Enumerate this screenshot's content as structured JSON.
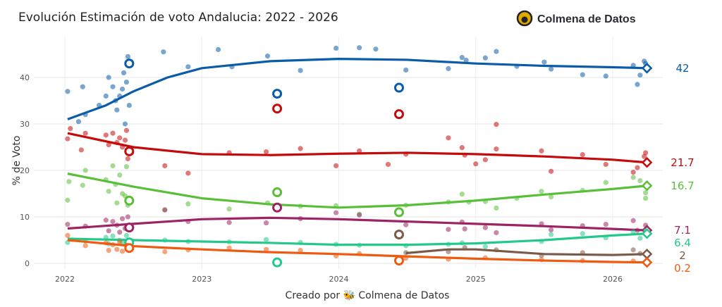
{
  "chart_data": {
    "type": "scatter",
    "title": "Evolución Estimación de voto Andalucia: 2022 - 2026",
    "brand": "Colmena de Datos",
    "xlabel": "Creado por 🐝 Colmena de Datos",
    "ylabel": "% de Voto",
    "xlim": [
      2021.75,
      2026.65
    ],
    "ylim": [
      -1.5,
      48
    ],
    "x_ticks": [
      2022,
      2023,
      2024,
      2025,
      2026
    ],
    "y_ticks": [
      0,
      10,
      20,
      30,
      40
    ],
    "grid": true,
    "series": [
      {
        "color": "#0a5ca8",
        "last_label": "42",
        "last_value": 42,
        "last_x": 2026.25,
        "trend": [
          [
            2022.02,
            31
          ],
          [
            2022.3,
            34
          ],
          [
            2022.5,
            37
          ],
          [
            2022.75,
            40
          ],
          [
            2023,
            42
          ],
          [
            2023.5,
            43.5
          ],
          [
            2024,
            44
          ],
          [
            2024.5,
            43.8
          ],
          [
            2025,
            43
          ],
          [
            2025.5,
            42.5
          ],
          [
            2026,
            42.2
          ],
          [
            2026.25,
            42
          ]
        ],
        "elections": [
          [
            2022.47,
            43
          ],
          [
            2023.55,
            36.5
          ],
          [
            2024.44,
            37.8
          ]
        ],
        "points": [
          [
            2022.02,
            37
          ],
          [
            2022.1,
            30.5
          ],
          [
            2022.13,
            38
          ],
          [
            2022.15,
            32
          ],
          [
            2022.25,
            34
          ],
          [
            2022.3,
            36
          ],
          [
            2022.32,
            40
          ],
          [
            2022.35,
            38
          ],
          [
            2022.37,
            35
          ],
          [
            2022.4,
            36
          ],
          [
            2022.42,
            37.5
          ],
          [
            2022.43,
            41
          ],
          [
            2022.45,
            39
          ],
          [
            2022.46,
            44.5
          ],
          [
            2022.44,
            30
          ],
          [
            2022.47,
            34
          ],
          [
            2022.38,
            33
          ],
          [
            2022.72,
            45.5
          ],
          [
            2022.9,
            42.3
          ],
          [
            2023.12,
            46
          ],
          [
            2023.22,
            42.3
          ],
          [
            2023.48,
            44.6
          ],
          [
            2023.72,
            41.5
          ],
          [
            2023.98,
            46.3
          ],
          [
            2024.15,
            46.4
          ],
          [
            2024.27,
            46.1
          ],
          [
            2024.49,
            41.6
          ],
          [
            2024.8,
            41.9
          ],
          [
            2024.9,
            44.3
          ],
          [
            2024.93,
            43.7
          ],
          [
            2025.07,
            44.2
          ],
          [
            2025.15,
            45.6
          ],
          [
            2025.3,
            42.4
          ],
          [
            2025.5,
            43.3
          ],
          [
            2025.55,
            41.8
          ],
          [
            2025.78,
            40.6
          ],
          [
            2025.95,
            40.3
          ],
          [
            2026.15,
            42.6
          ],
          [
            2026.18,
            38.5
          ],
          [
            2026.23,
            43.5
          ],
          [
            2026.24,
            43
          ],
          [
            2026.2,
            40.5
          ]
        ]
      },
      {
        "color": "#c40a0a",
        "last_label": "21.7",
        "last_value": 21.7,
        "last_x": 2026.25,
        "trend": [
          [
            2022.02,
            28
          ],
          [
            2022.5,
            25
          ],
          [
            2023,
            23.5
          ],
          [
            2023.5,
            23.3
          ],
          [
            2024,
            23.6
          ],
          [
            2024.5,
            23.8
          ],
          [
            2025,
            23.5
          ],
          [
            2025.5,
            23
          ],
          [
            2026,
            22.3
          ],
          [
            2026.25,
            21.7
          ]
        ],
        "elections": [
          [
            2022.47,
            24.1
          ],
          [
            2023.55,
            33.3
          ],
          [
            2024.44,
            32.1
          ]
        ],
        "points": [
          [
            2022.02,
            26.8
          ],
          [
            2022.04,
            29
          ],
          [
            2022.12,
            24.4
          ],
          [
            2022.15,
            28
          ],
          [
            2022.3,
            27.6
          ],
          [
            2022.32,
            25.5
          ],
          [
            2022.35,
            28
          ],
          [
            2022.38,
            26
          ],
          [
            2022.4,
            27
          ],
          [
            2022.42,
            25
          ],
          [
            2022.44,
            26.5
          ],
          [
            2022.46,
            22.5
          ],
          [
            2022.45,
            28.6
          ],
          [
            2022.73,
            21
          ],
          [
            2022.9,
            19.4
          ],
          [
            2023.2,
            23.8
          ],
          [
            2023.47,
            24
          ],
          [
            2023.72,
            24.7
          ],
          [
            2023.98,
            21
          ],
          [
            2024.15,
            24.2
          ],
          [
            2024.36,
            21.3
          ],
          [
            2024.49,
            23.5
          ],
          [
            2024.8,
            27
          ],
          [
            2024.9,
            24.9
          ],
          [
            2024.92,
            23.3
          ],
          [
            2025.0,
            21.4
          ],
          [
            2025.07,
            22.3
          ],
          [
            2025.15,
            29.9
          ],
          [
            2025.15,
            24.6
          ],
          [
            2025.48,
            24.2
          ],
          [
            2025.55,
            19.8
          ],
          [
            2025.78,
            23.4
          ],
          [
            2025.95,
            21.3
          ],
          [
            2026.15,
            19.6
          ],
          [
            2026.18,
            20.6
          ],
          [
            2026.24,
            23.8
          ],
          [
            2026.23,
            23
          ]
        ]
      },
      {
        "color": "#5abf38",
        "last_label": "16.7",
        "last_value": 16.7,
        "last_x": 2026.25,
        "trend": [
          [
            2022.02,
            19.3
          ],
          [
            2022.5,
            16.5
          ],
          [
            2023,
            14
          ],
          [
            2023.5,
            12.7
          ],
          [
            2024,
            12
          ],
          [
            2024.5,
            12.5
          ],
          [
            2025,
            13.5
          ],
          [
            2025.5,
            14.8
          ],
          [
            2026,
            16
          ],
          [
            2026.25,
            16.7
          ]
        ],
        "elections": [
          [
            2022.47,
            13.5
          ],
          [
            2023.55,
            15.3
          ],
          [
            2024.44,
            11
          ]
        ],
        "points": [
          [
            2022.02,
            13.6
          ],
          [
            2022.03,
            17.6
          ],
          [
            2022.13,
            16.8
          ],
          [
            2022.15,
            20
          ],
          [
            2022.3,
            18
          ],
          [
            2022.32,
            15.5
          ],
          [
            2022.35,
            21
          ],
          [
            2022.37,
            17
          ],
          [
            2022.4,
            19
          ],
          [
            2022.42,
            15
          ],
          [
            2022.44,
            14.5
          ],
          [
            2022.45,
            20.8
          ],
          [
            2022.46,
            12.5
          ],
          [
            2022.38,
            13
          ],
          [
            2022.73,
            11.5
          ],
          [
            2022.9,
            12.8
          ],
          [
            2023.2,
            11.7
          ],
          [
            2023.48,
            13
          ],
          [
            2023.72,
            12.3
          ],
          [
            2023.98,
            12.4
          ],
          [
            2024.15,
            10.6
          ],
          [
            2024.49,
            12.5
          ],
          [
            2024.8,
            13.2
          ],
          [
            2024.9,
            14.9
          ],
          [
            2024.95,
            13.2
          ],
          [
            2025.07,
            13.3
          ],
          [
            2025.15,
            11.9
          ],
          [
            2025.3,
            14
          ],
          [
            2025.48,
            15.5
          ],
          [
            2025.55,
            14.3
          ],
          [
            2025.78,
            15.7
          ],
          [
            2025.95,
            17.4
          ],
          [
            2026.15,
            18.5
          ],
          [
            2026.2,
            17.8
          ],
          [
            2026.24,
            15.2
          ],
          [
            2026.24,
            14
          ]
        ]
      },
      {
        "color": "#9c2463",
        "last_label": "7.1",
        "last_value": 7.1,
        "last_x": 2026.25,
        "trend": [
          [
            2022.02,
            7.5
          ],
          [
            2022.5,
            8.5
          ],
          [
            2023,
            9.5
          ],
          [
            2023.5,
            9.8
          ],
          [
            2024,
            9.5
          ],
          [
            2024.5,
            9
          ],
          [
            2025,
            8.5
          ],
          [
            2025.5,
            8
          ],
          [
            2026,
            7.4
          ],
          [
            2026.25,
            7.1
          ]
        ],
        "elections": [
          [
            2022.47,
            7.7
          ],
          [
            2023.55,
            12
          ]
        ],
        "points": [
          [
            2022.02,
            8.4
          ],
          [
            2022.15,
            8
          ],
          [
            2022.3,
            9.3
          ],
          [
            2022.32,
            7
          ],
          [
            2022.35,
            9
          ],
          [
            2022.38,
            8.2
          ],
          [
            2022.4,
            6.7
          ],
          [
            2022.42,
            9.6
          ],
          [
            2022.44,
            7.5
          ],
          [
            2022.46,
            10
          ],
          [
            2022.73,
            11.5
          ],
          [
            2022.9,
            9
          ],
          [
            2023.2,
            8.8
          ],
          [
            2023.47,
            8.7
          ],
          [
            2023.72,
            9.6
          ],
          [
            2023.98,
            10.9
          ],
          [
            2024.15,
            10.4
          ],
          [
            2024.49,
            8.3
          ],
          [
            2024.8,
            7.3
          ],
          [
            2024.9,
            8.9
          ],
          [
            2024.92,
            7.4
          ],
          [
            2025.07,
            7.7
          ],
          [
            2025.15,
            6.6
          ],
          [
            2025.48,
            8.5
          ],
          [
            2025.55,
            7.2
          ],
          [
            2025.78,
            8.1
          ],
          [
            2025.95,
            8.4
          ],
          [
            2026.15,
            9.2
          ],
          [
            2026.18,
            7.1
          ],
          [
            2026.24,
            8.2
          ],
          [
            2026.24,
            6.8
          ]
        ]
      },
      {
        "color": "#22c98a",
        "last_label": "6.4",
        "last_value": 6.4,
        "last_x": 2026.25,
        "trend": [
          [
            2022.02,
            5.3
          ],
          [
            2022.5,
            5
          ],
          [
            2023,
            4.7
          ],
          [
            2023.5,
            4.4
          ],
          [
            2024,
            4
          ],
          [
            2024.5,
            4
          ],
          [
            2025,
            4.3
          ],
          [
            2025.5,
            5
          ],
          [
            2026,
            6
          ],
          [
            2026.25,
            6.4
          ]
        ],
        "elections": [
          [
            2022.47,
            4.5
          ],
          [
            2023.55,
            0.2
          ]
        ],
        "points": [
          [
            2022.02,
            4.5
          ],
          [
            2022.15,
            4.8
          ],
          [
            2022.3,
            5.6
          ],
          [
            2022.32,
            4.2
          ],
          [
            2022.35,
            5.9
          ],
          [
            2022.4,
            5
          ],
          [
            2022.42,
            4.5
          ],
          [
            2022.45,
            6
          ],
          [
            2022.73,
            5
          ],
          [
            2022.9,
            4.7
          ],
          [
            2023.2,
            4.6
          ],
          [
            2023.47,
            5.1
          ],
          [
            2023.72,
            4.5
          ],
          [
            2023.98,
            4.1
          ],
          [
            2024.15,
            3.9
          ],
          [
            2024.49,
            3.8
          ],
          [
            2024.8,
            4.1
          ],
          [
            2024.9,
            4.4
          ],
          [
            2025.07,
            3.6
          ],
          [
            2025.48,
            4.7
          ],
          [
            2025.55,
            6.2
          ],
          [
            2025.78,
            6.4
          ],
          [
            2025.95,
            5.5
          ],
          [
            2026.15,
            6.8
          ],
          [
            2026.2,
            5.4
          ],
          [
            2026.24,
            7
          ]
        ]
      },
      {
        "color": "#7a5a48",
        "last_label": "2",
        "last_value": 2,
        "last_x": 2026.25,
        "trend": [
          [
            2024.49,
            2.2
          ],
          [
            2024.8,
            3
          ],
          [
            2025,
            3
          ],
          [
            2025.5,
            2
          ],
          [
            2026,
            1.8
          ],
          [
            2026.25,
            2
          ]
        ],
        "elections": [
          [
            2024.44,
            6.2
          ]
        ],
        "points": [
          [
            2024.49,
            2.3
          ],
          [
            2024.8,
            2.5
          ],
          [
            2024.92,
            3.4
          ],
          [
            2025.15,
            2.9
          ],
          [
            2025.48,
            1.7
          ],
          [
            2025.78,
            2.3
          ],
          [
            2026.15,
            2.9
          ],
          [
            2026.2,
            2.1
          ]
        ]
      },
      {
        "color": "#ee5a10",
        "last_label": "0.2",
        "last_value": 0.2,
        "last_x": 2026.25,
        "trend": [
          [
            2022.02,
            5
          ],
          [
            2022.5,
            3.7
          ],
          [
            2023,
            3
          ],
          [
            2023.5,
            2.4
          ],
          [
            2024,
            2
          ],
          [
            2024.5,
            1.5
          ],
          [
            2025,
            1
          ],
          [
            2025.5,
            0.6
          ],
          [
            2026,
            0.3
          ],
          [
            2026.25,
            0.2
          ]
        ],
        "elections": [
          [
            2022.47,
            3.3
          ],
          [
            2024.44,
            0.6
          ]
        ],
        "points": [
          [
            2022.02,
            6
          ],
          [
            2022.15,
            3.8
          ],
          [
            2022.3,
            4.4
          ],
          [
            2022.32,
            2.8
          ],
          [
            2022.35,
            4
          ],
          [
            2022.38,
            3
          ],
          [
            2022.4,
            4.6
          ],
          [
            2022.42,
            2.6
          ],
          [
            2022.45,
            3.9
          ],
          [
            2022.73,
            2.5
          ],
          [
            2022.9,
            2.9
          ],
          [
            2023.2,
            3.3
          ],
          [
            2023.47,
            3
          ],
          [
            2023.72,
            2.8
          ],
          [
            2023.98,
            1.6
          ],
          [
            2024.15,
            2.1
          ],
          [
            2024.49,
            1.1
          ],
          [
            2024.8,
            0.9
          ],
          [
            2025.07,
            1.2
          ],
          [
            2025.48,
            0.8
          ],
          [
            2025.78,
            0.6
          ],
          [
            2026.15,
            0.5
          ],
          [
            2026.24,
            0.3
          ]
        ]
      }
    ]
  }
}
